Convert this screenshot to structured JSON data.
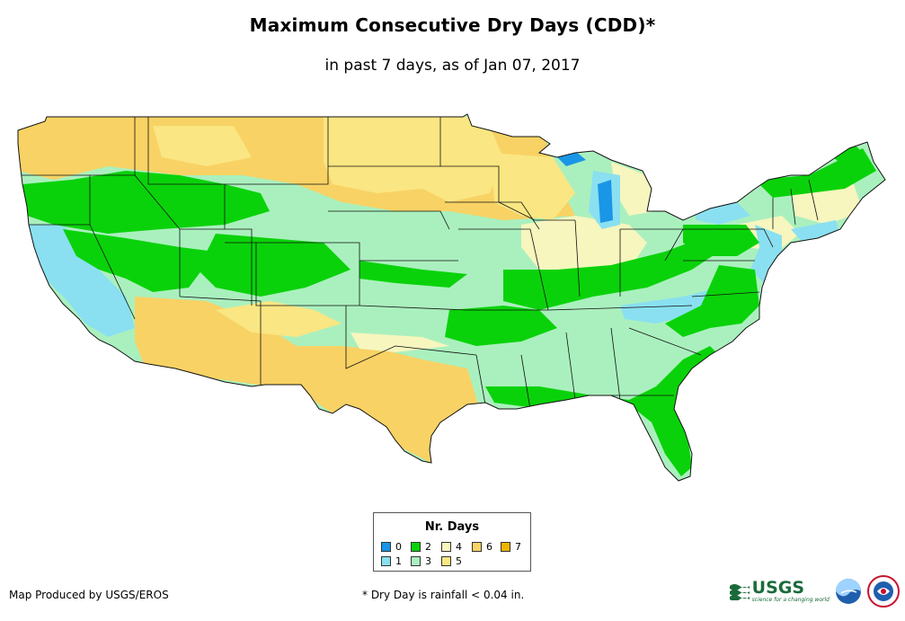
{
  "title": "Maximum Consecutive Dry Days (CDD)*",
  "subtitle": "in past 7 days, as of Jan 07, 2017",
  "map": {
    "region": "Contiguous United States",
    "dominant_categories": [
      "2",
      "3",
      "6"
    ]
  },
  "legend": {
    "title": "Nr. Days",
    "items": [
      {
        "label": "0",
        "color": "#1a96e6"
      },
      {
        "label": "1",
        "color": "#8ae0f0"
      },
      {
        "label": "2",
        "color": "#0ad20a"
      },
      {
        "label": "3",
        "color": "#aaf0be"
      },
      {
        "label": "4",
        "color": "#f6f6be"
      },
      {
        "label": "5",
        "color": "#fae682"
      },
      {
        "label": "6",
        "color": "#f8d264"
      },
      {
        "label": "7",
        "color": "#f0b400"
      }
    ]
  },
  "credit": "Map Produced by USGS/EROS",
  "footnote": "* Dry Day is rainfall < 0.04 in.",
  "logos": {
    "usgs": "USGS",
    "usgs_tagline": "science for a changing world",
    "noaa": "noaa-logo",
    "nws": "nws-logo"
  }
}
